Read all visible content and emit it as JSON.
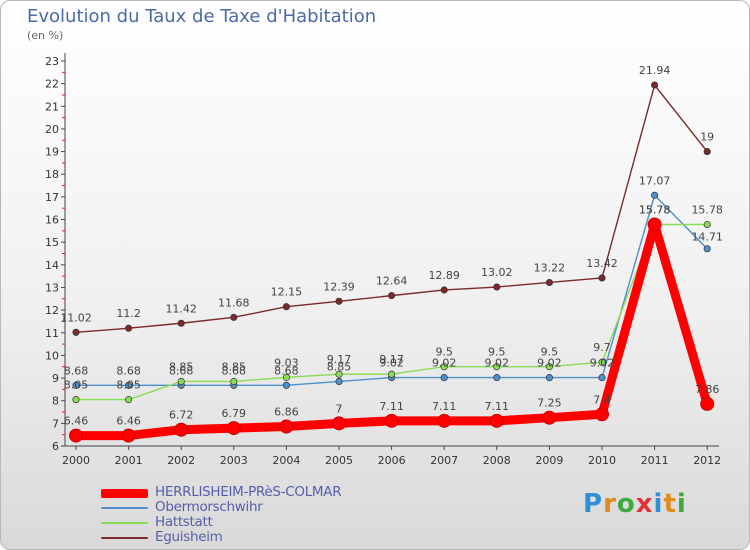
{
  "header": {
    "title": "Evolution du Taux de Taxe d'Habitation",
    "unit": "(en %)"
  },
  "chart_data": {
    "type": "line",
    "title": "Evolution du Taux de Taxe d'Habitation",
    "ylabel": "(en %)",
    "xlabel": "",
    "ylim": [
      6,
      23
    ],
    "y_ticks": [
      6,
      7,
      8,
      9,
      10,
      11,
      12,
      13,
      14,
      15,
      16,
      17,
      18,
      19,
      20,
      21,
      22,
      23
    ],
    "categories": [
      "2000",
      "2001",
      "2002",
      "2003",
      "2004",
      "2005",
      "2006",
      "2007",
      "2008",
      "2009",
      "2010",
      "2011",
      "2012"
    ],
    "grid": false,
    "legend_position": "bottom-left",
    "series": [
      {
        "name": "HERRLISHEIM-PRèS-COLMAR",
        "color": "#ff0000",
        "values": [
          6.46,
          6.46,
          6.72,
          6.79,
          6.86,
          7,
          7.11,
          7.11,
          7.11,
          7.25,
          7.4,
          15.78,
          7.86
        ],
        "labels": [
          "6.46",
          "6.46",
          "6.72",
          "6.79",
          "6.86",
          "7",
          "7.11",
          "7.11",
          "7.11",
          "7.25",
          "7.4",
          "15.78",
          "7.86"
        ]
      },
      {
        "name": "Obermorschwihr",
        "color": "#4f8fcc",
        "values": [
          8.68,
          8.68,
          8.68,
          8.68,
          8.68,
          8.85,
          9.02,
          9.02,
          9.02,
          9.02,
          9.02,
          17.07,
          14.71
        ],
        "labels": [
          "8.68",
          "8.68",
          "8.68",
          "8.68",
          "8.68",
          "8.85",
          "9.02",
          "9.02",
          "9.02",
          "9.02",
          "9.02",
          "17.07",
          "14.71"
        ]
      },
      {
        "name": "Hattstatt",
        "color": "#88dd55",
        "values": [
          8.05,
          8.05,
          8.85,
          8.85,
          9.03,
          9.17,
          9.17,
          9.5,
          9.5,
          9.5,
          9.7,
          15.78,
          15.78
        ],
        "labels": [
          "8.05",
          "8.05",
          "8.85",
          "8.85",
          "9.03",
          "9.17",
          "9.17",
          "9.5",
          "9.5",
          "9.5",
          "9.7",
          "15.78",
          "15.78"
        ]
      },
      {
        "name": "Eguisheim",
        "color": "#7a2a2a",
        "values": [
          11.02,
          11.2,
          11.42,
          11.68,
          12.15,
          12.39,
          12.64,
          12.89,
          13.02,
          13.22,
          13.42,
          21.94,
          19
        ],
        "labels": [
          "11.02",
          "11.2",
          "11.42",
          "11.68",
          "12.15",
          "12.39",
          "12.64",
          "12.89",
          "13.02",
          "13.22",
          "13.42",
          "21.94",
          "19"
        ]
      }
    ]
  },
  "logo": {
    "letters": [
      "P",
      "r",
      "o",
      "x",
      "i",
      "t",
      "i"
    ],
    "colors": [
      "#2e8fd6",
      "#e38a1e",
      "#3caa3c",
      "#e0333a",
      "#2e8fd6",
      "#e38a1e",
      "#3caa3c"
    ]
  }
}
